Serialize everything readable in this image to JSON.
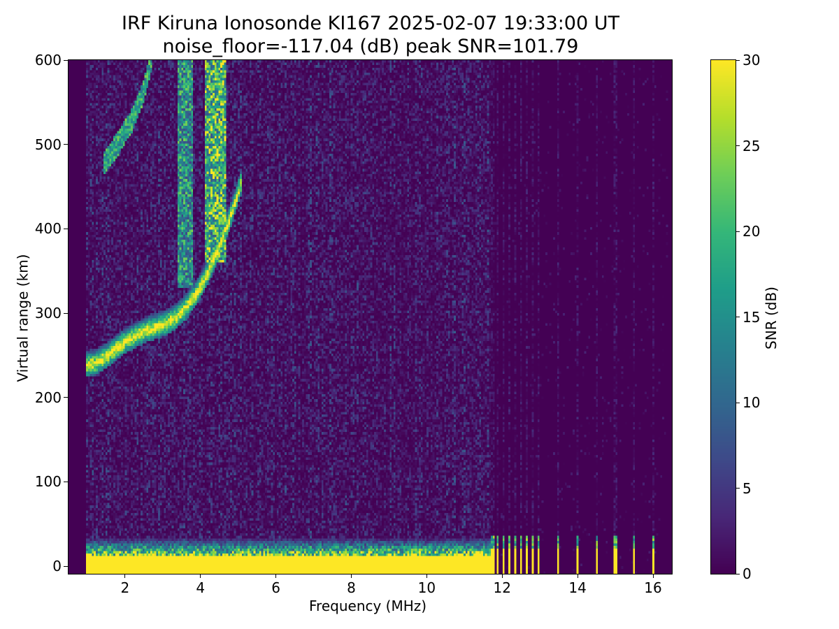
{
  "chart_data": {
    "type": "heatmap",
    "title": "IRF Kiruna Ionosonde KI167 2025-02-07 19:33:00  UT",
    "subtitle": "noise_floor=-117.04 (dB) peak SNR=101.79",
    "xlabel": "Frequency (MHz)",
    "ylabel": "Virtual range (km)",
    "xlim": [
      0.5,
      16.5
    ],
    "ylim": [
      -9,
      600
    ],
    "xticks": [
      2,
      4,
      6,
      8,
      10,
      12,
      14,
      16
    ],
    "yticks": [
      0,
      100,
      200,
      300,
      400,
      500,
      600
    ],
    "colorbar": {
      "label": "SNR (dB)",
      "range": [
        0,
        30
      ],
      "ticks": [
        0,
        5,
        10,
        15,
        20,
        25,
        30
      ],
      "colormap": "viridis"
    },
    "data_frequency_range_mhz": [
      0.95,
      16.4
    ],
    "ground_echo": {
      "range_km": [
        -9,
        35
      ],
      "snr_db": 30,
      "continuous_until_mhz": 11.7,
      "discrete_columns_mhz": [
        11.75,
        11.9,
        12.05,
        12.2,
        12.35,
        12.5,
        12.65,
        12.8,
        12.95,
        13.5,
        14.0,
        14.5,
        15.0,
        15.5,
        16.0
      ]
    },
    "f_layer_trace": {
      "frequency_mhz": [
        0.95,
        1.2,
        1.5,
        2.0,
        2.5,
        2.8,
        3.0,
        3.3,
        3.6,
        3.9,
        4.2,
        4.5,
        4.7,
        4.9,
        5.1
      ],
      "virtual_range_km": [
        230,
        232,
        240,
        258,
        270,
        275,
        278,
        285,
        297,
        315,
        340,
        370,
        395,
        420,
        450
      ],
      "snr_db": 30
    },
    "f_layer_spread": [
      {
        "frequency_mhz": [
          3.4,
          3.8
        ],
        "virtual_range_km": [
          330,
          600
        ],
        "snr_db": 20
      },
      {
        "frequency_mhz": [
          4.1,
          4.7
        ],
        "virtual_range_km": [
          360,
          600
        ],
        "snr_db": 26
      }
    ],
    "multi_hop_trace": {
      "frequency_mhz": [
        1.45,
        1.8,
        2.2,
        2.5,
        2.7
      ],
      "virtual_range_km": [
        478,
        500,
        530,
        565,
        600
      ],
      "snr_db": 22
    },
    "noise_snr_db": [
      0,
      4
    ]
  }
}
